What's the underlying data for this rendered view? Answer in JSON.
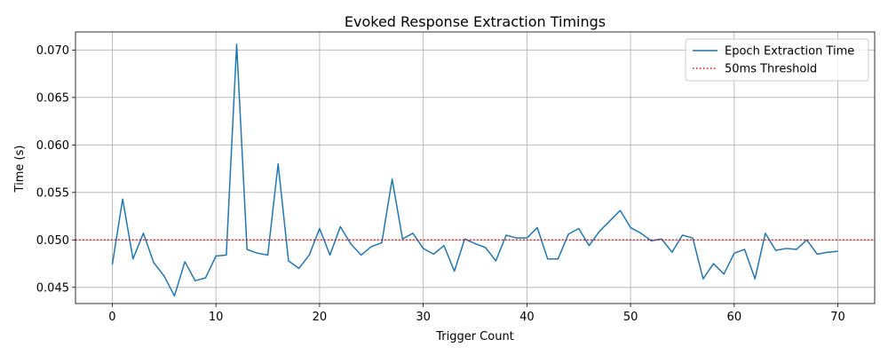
{
  "chart_data": {
    "type": "line",
    "title": "Evoked Response Extraction Timings",
    "xlabel": "Trigger Count",
    "ylabel": "Time (s)",
    "xlim": [
      -3.55,
      73.55
    ],
    "ylim": [
      0.0433,
      0.0719
    ],
    "x_ticks": [
      0,
      10,
      20,
      30,
      40,
      50,
      60,
      70
    ],
    "y_ticks": [
      0.045,
      0.05,
      0.055,
      0.06,
      0.065,
      0.07
    ],
    "y_tick_labels": [
      "0.045",
      "0.050",
      "0.055",
      "0.060",
      "0.065",
      "0.070"
    ],
    "grid": true,
    "legend_position": "top-right",
    "series": [
      {
        "name": "Epoch Extraction Time",
        "color": "#1f77b4",
        "style": "solid",
        "x": [
          0,
          1,
          2,
          3,
          4,
          5,
          6,
          7,
          8,
          9,
          10,
          11,
          12,
          13,
          14,
          15,
          16,
          17,
          18,
          19,
          20,
          21,
          22,
          23,
          24,
          25,
          26,
          27,
          28,
          29,
          30,
          31,
          32,
          33,
          34,
          35,
          36,
          37,
          38,
          39,
          40,
          41,
          42,
          43,
          44,
          45,
          46,
          47,
          48,
          49,
          50,
          51,
          52,
          53,
          54,
          55,
          56,
          57,
          58,
          59,
          60,
          61,
          62,
          63,
          64,
          65,
          66,
          67,
          68,
          69,
          70
        ],
        "values": [
          0.0474,
          0.0543,
          0.048,
          0.0507,
          0.0476,
          0.0462,
          0.0441,
          0.0477,
          0.0457,
          0.046,
          0.0483,
          0.0484,
          0.0706,
          0.049,
          0.0486,
          0.0484,
          0.058,
          0.0478,
          0.047,
          0.0484,
          0.0512,
          0.0484,
          0.0514,
          0.0496,
          0.0484,
          0.0493,
          0.0497,
          0.0564,
          0.0501,
          0.0507,
          0.0491,
          0.0485,
          0.0494,
          0.0467,
          0.0501,
          0.0496,
          0.0492,
          0.0478,
          0.0505,
          0.0502,
          0.0502,
          0.0513,
          0.048,
          0.048,
          0.0506,
          0.0512,
          0.0494,
          0.0509,
          0.052,
          0.0531,
          0.0513,
          0.0507,
          0.0499,
          0.0501,
          0.0487,
          0.0505,
          0.0502,
          0.0459,
          0.0475,
          0.0464,
          0.0486,
          0.049,
          0.0459,
          0.0507,
          0.0489,
          0.0491,
          0.049,
          0.05,
          0.0485,
          0.0487,
          0.0488
        ]
      },
      {
        "name": "50ms Threshold",
        "color": "#ff0000",
        "style": "dotted",
        "y": 0.05
      }
    ]
  }
}
